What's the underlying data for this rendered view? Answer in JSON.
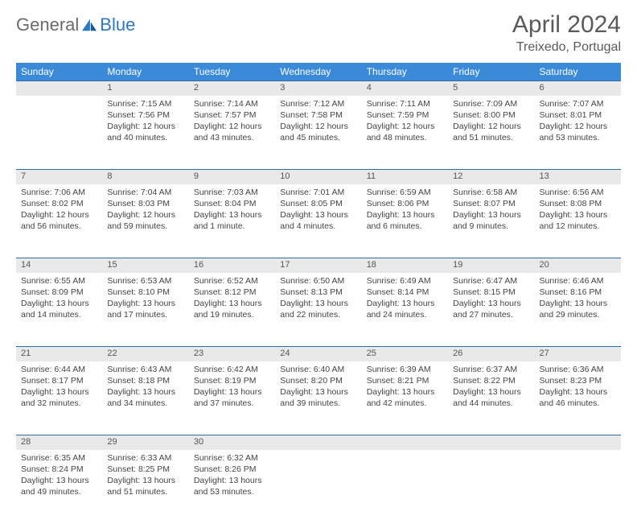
{
  "brand": {
    "text_general": "General",
    "text_blue": "Blue",
    "logo_color": "#2d78c3"
  },
  "title": "April 2024",
  "location": "Treixedo, Portugal",
  "colors": {
    "header_bg": "#3b8ad8",
    "header_text": "#ffffff",
    "daynum_bg": "#e9e9e9",
    "row_border": "#2d6ea8",
    "body_text": "#444444",
    "title_text": "#5a5a5a"
  },
  "weekdays": [
    "Sunday",
    "Monday",
    "Tuesday",
    "Wednesday",
    "Thursday",
    "Friday",
    "Saturday"
  ],
  "weeks": [
    [
      null,
      {
        "n": "1",
        "sr": "7:15 AM",
        "ss": "7:56 PM",
        "dl": "12 hours and 40 minutes."
      },
      {
        "n": "2",
        "sr": "7:14 AM",
        "ss": "7:57 PM",
        "dl": "12 hours and 43 minutes."
      },
      {
        "n": "3",
        "sr": "7:12 AM",
        "ss": "7:58 PM",
        "dl": "12 hours and 45 minutes."
      },
      {
        "n": "4",
        "sr": "7:11 AM",
        "ss": "7:59 PM",
        "dl": "12 hours and 48 minutes."
      },
      {
        "n": "5",
        "sr": "7:09 AM",
        "ss": "8:00 PM",
        "dl": "12 hours and 51 minutes."
      },
      {
        "n": "6",
        "sr": "7:07 AM",
        "ss": "8:01 PM",
        "dl": "12 hours and 53 minutes."
      }
    ],
    [
      {
        "n": "7",
        "sr": "7:06 AM",
        "ss": "8:02 PM",
        "dl": "12 hours and 56 minutes."
      },
      {
        "n": "8",
        "sr": "7:04 AM",
        "ss": "8:03 PM",
        "dl": "12 hours and 59 minutes."
      },
      {
        "n": "9",
        "sr": "7:03 AM",
        "ss": "8:04 PM",
        "dl": "13 hours and 1 minute."
      },
      {
        "n": "10",
        "sr": "7:01 AM",
        "ss": "8:05 PM",
        "dl": "13 hours and 4 minutes."
      },
      {
        "n": "11",
        "sr": "6:59 AM",
        "ss": "8:06 PM",
        "dl": "13 hours and 6 minutes."
      },
      {
        "n": "12",
        "sr": "6:58 AM",
        "ss": "8:07 PM",
        "dl": "13 hours and 9 minutes."
      },
      {
        "n": "13",
        "sr": "6:56 AM",
        "ss": "8:08 PM",
        "dl": "13 hours and 12 minutes."
      }
    ],
    [
      {
        "n": "14",
        "sr": "6:55 AM",
        "ss": "8:09 PM",
        "dl": "13 hours and 14 minutes."
      },
      {
        "n": "15",
        "sr": "6:53 AM",
        "ss": "8:10 PM",
        "dl": "13 hours and 17 minutes."
      },
      {
        "n": "16",
        "sr": "6:52 AM",
        "ss": "8:12 PM",
        "dl": "13 hours and 19 minutes."
      },
      {
        "n": "17",
        "sr": "6:50 AM",
        "ss": "8:13 PM",
        "dl": "13 hours and 22 minutes."
      },
      {
        "n": "18",
        "sr": "6:49 AM",
        "ss": "8:14 PM",
        "dl": "13 hours and 24 minutes."
      },
      {
        "n": "19",
        "sr": "6:47 AM",
        "ss": "8:15 PM",
        "dl": "13 hours and 27 minutes."
      },
      {
        "n": "20",
        "sr": "6:46 AM",
        "ss": "8:16 PM",
        "dl": "13 hours and 29 minutes."
      }
    ],
    [
      {
        "n": "21",
        "sr": "6:44 AM",
        "ss": "8:17 PM",
        "dl": "13 hours and 32 minutes."
      },
      {
        "n": "22",
        "sr": "6:43 AM",
        "ss": "8:18 PM",
        "dl": "13 hours and 34 minutes."
      },
      {
        "n": "23",
        "sr": "6:42 AM",
        "ss": "8:19 PM",
        "dl": "13 hours and 37 minutes."
      },
      {
        "n": "24",
        "sr": "6:40 AM",
        "ss": "8:20 PM",
        "dl": "13 hours and 39 minutes."
      },
      {
        "n": "25",
        "sr": "6:39 AM",
        "ss": "8:21 PM",
        "dl": "13 hours and 42 minutes."
      },
      {
        "n": "26",
        "sr": "6:37 AM",
        "ss": "8:22 PM",
        "dl": "13 hours and 44 minutes."
      },
      {
        "n": "27",
        "sr": "6:36 AM",
        "ss": "8:23 PM",
        "dl": "13 hours and 46 minutes."
      }
    ],
    [
      {
        "n": "28",
        "sr": "6:35 AM",
        "ss": "8:24 PM",
        "dl": "13 hours and 49 minutes."
      },
      {
        "n": "29",
        "sr": "6:33 AM",
        "ss": "8:25 PM",
        "dl": "13 hours and 51 minutes."
      },
      {
        "n": "30",
        "sr": "6:32 AM",
        "ss": "8:26 PM",
        "dl": "13 hours and 53 minutes."
      },
      null,
      null,
      null,
      null
    ]
  ],
  "labels": {
    "sunrise": "Sunrise:",
    "sunset": "Sunset:",
    "daylight": "Daylight:"
  }
}
